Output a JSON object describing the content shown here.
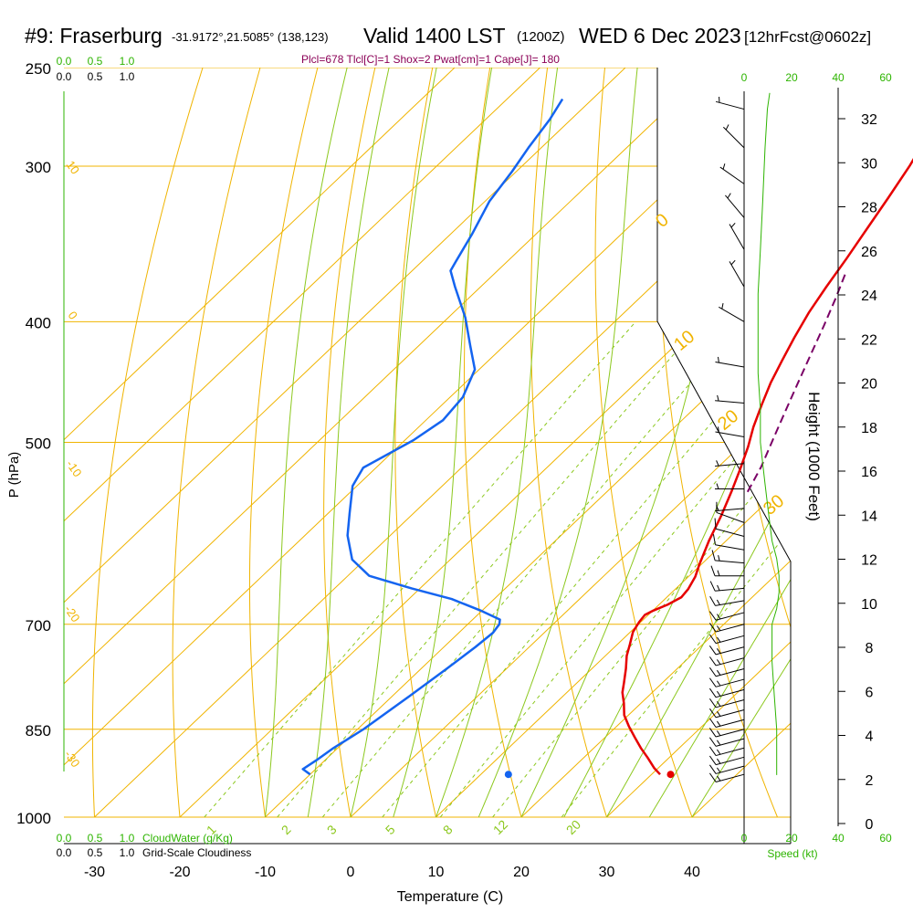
{
  "header": {
    "station": "#9: Fraserburg",
    "coords": "-31.9172°,21.5085° (138,123)",
    "valid": "Valid 1400 LST",
    "utc": "(1200Z)",
    "date": "WED 6 Dec 2023",
    "forecast": "[12hrFcst@0602z]"
  },
  "indices": "Plcl=678 Tlcl[C]=1 Shox=2 Pwat[cm]=1 Cape[J]= 180",
  "chart_data": {
    "type": "line",
    "subtype": "skew-T log-P",
    "xlabel": "Temperature (C)",
    "ylabel": "P (hPa)",
    "right_axis_label": "Height (1000 Feet)",
    "x_ticks": [
      -30,
      -20,
      -10,
      0,
      10,
      20,
      30,
      40
    ],
    "p_ticks": [
      250,
      300,
      400,
      500,
      700,
      850,
      1000
    ],
    "height_ticks": [
      0,
      2,
      4,
      6,
      8,
      10,
      12,
      14,
      16,
      18,
      20,
      22,
      24,
      26,
      28,
      30,
      32
    ],
    "series": [
      {
        "name": "Temperature",
        "color": "#e60000",
        "points": [
          [
            31.0,
            924
          ],
          [
            29.5,
            913
          ],
          [
            27.5,
            896
          ],
          [
            25.5,
            880
          ],
          [
            23.5,
            863
          ],
          [
            21.5,
            846
          ],
          [
            19.5,
            828
          ],
          [
            18.0,
            810
          ],
          [
            16.5,
            794
          ],
          [
            15.5,
            780
          ],
          [
            14.0,
            760
          ],
          [
            12.5,
            742
          ],
          [
            11.5,
            727
          ],
          [
            10.3,
            710
          ],
          [
            9.8,
            697
          ],
          [
            9.6,
            688
          ],
          [
            10.0,
            683
          ],
          [
            11.0,
            675
          ],
          [
            11.7,
            666
          ],
          [
            11.5,
            656
          ],
          [
            10.8,
            641
          ],
          [
            9.8,
            627
          ],
          [
            8.0,
            600
          ],
          [
            6.3,
            572
          ],
          [
            4.6,
            548
          ],
          [
            2.8,
            525
          ],
          [
            1.0,
            504
          ],
          [
            -0.8,
            486
          ],
          [
            -2.6,
            466
          ],
          [
            -4.2,
            448
          ],
          [
            -5.6,
            430
          ],
          [
            -7.0,
            412
          ],
          [
            -8.4,
            393
          ],
          [
            -9.5,
            375
          ],
          [
            -10.6,
            356
          ],
          [
            -11.8,
            338
          ],
          [
            -13.2,
            318
          ],
          [
            -14.6,
            300
          ],
          [
            -16.4,
            282
          ],
          [
            -17.8,
            266
          ],
          [
            -18.8,
            254
          ]
        ]
      },
      {
        "name": "Dew point",
        "color": "#1464f0",
        "points": [
          [
            -10.0,
            924
          ],
          [
            -11.5,
            915
          ],
          [
            -11.0,
            900
          ],
          [
            -10.5,
            880
          ],
          [
            -9.3,
            850
          ],
          [
            -8.0,
            800
          ],
          [
            -7.0,
            760
          ],
          [
            -6.3,
            730
          ],
          [
            -6.0,
            711
          ],
          [
            -6.3,
            700
          ],
          [
            -6.8,
            694
          ],
          [
            -10.0,
            683
          ],
          [
            -15.0,
            668
          ],
          [
            -21.0,
            655
          ],
          [
            -27.5,
            640
          ],
          [
            -31.5,
            621
          ],
          [
            -35.0,
            594
          ],
          [
            -37.5,
            570
          ],
          [
            -40.5,
            542
          ],
          [
            -41.5,
            524
          ],
          [
            -39.0,
            498
          ],
          [
            -38.0,
            480
          ],
          [
            -38.5,
            460
          ],
          [
            -40.5,
            437
          ],
          [
            -44.0,
            418
          ],
          [
            -48.0,
            397
          ],
          [
            -53.0,
            375
          ],
          [
            -55.5,
            364
          ],
          [
            -56.0,
            358
          ],
          [
            -57.5,
            340
          ],
          [
            -59.5,
            320
          ],
          [
            -60.5,
            303
          ],
          [
            -61.5,
            290
          ],
          [
            -62.5,
            275
          ],
          [
            -63.5,
            265
          ]
        ]
      },
      {
        "name": "Parcel",
        "color": "#7a0066",
        "points": [
          [
            6.5,
            548
          ],
          [
            5.0,
            523
          ],
          [
            3.0,
            497
          ],
          [
            1.0,
            472
          ],
          [
            -1.0,
            448
          ],
          [
            -3.0,
            425
          ],
          [
            -5.0,
            403
          ],
          [
            -7.0,
            383
          ],
          [
            -9.0,
            365
          ]
        ]
      }
    ],
    "surface_points": {
      "temperature": 32.3,
      "dew_point": 13.3,
      "pressure": 925
    },
    "isotherms": [
      -80,
      -70,
      -60,
      -50,
      -40,
      -30,
      -20,
      -10,
      0,
      10,
      20,
      30,
      40
    ],
    "isotherm_labels": [
      "10",
      "0",
      "-10",
      "-20",
      "-30"
    ],
    "dry_adiabat_labels": [
      "0",
      "10",
      "20",
      "30"
    ],
    "mixing_ratios": [
      1,
      2,
      3,
      5,
      8,
      12,
      20
    ],
    "wind_speed_ticks": [
      0,
      20,
      40,
      60
    ],
    "wind_speed_label": "Speed (kt)",
    "cloud_water_ticks": [
      "0.0",
      "0.5",
      "1.0"
    ],
    "cloud_water_label": "CloudWater (g/Kg)",
    "cloudiness_label": "Grid-Scale Cloudiness",
    "wind_speed_profile": [
      [
        925,
        14
      ],
      [
        900,
        14
      ],
      [
        850,
        14
      ],
      [
        800,
        13
      ],
      [
        750,
        12
      ],
      [
        700,
        12
      ],
      [
        680,
        14
      ],
      [
        660,
        15
      ],
      [
        640,
        15
      ],
      [
        620,
        14
      ],
      [
        600,
        12
      ],
      [
        580,
        11
      ],
      [
        560,
        10
      ],
      [
        540,
        9
      ],
      [
        520,
        8
      ],
      [
        500,
        7
      ],
      [
        470,
        7
      ],
      [
        440,
        6
      ],
      [
        410,
        6
      ],
      [
        380,
        6
      ],
      [
        350,
        7
      ],
      [
        320,
        8
      ],
      [
        290,
        9
      ],
      [
        270,
        10
      ],
      [
        262,
        11
      ]
    ],
    "wind_barbs": [
      {
        "p": 924,
        "dir": 255,
        "spd": 15
      },
      {
        "p": 910,
        "dir": 255,
        "spd": 15
      },
      {
        "p": 895,
        "dir": 255,
        "spd": 15
      },
      {
        "p": 880,
        "dir": 255,
        "spd": 15
      },
      {
        "p": 865,
        "dir": 255,
        "spd": 15
      },
      {
        "p": 850,
        "dir": 255,
        "spd": 15
      },
      {
        "p": 835,
        "dir": 255,
        "spd": 15
      },
      {
        "p": 820,
        "dir": 255,
        "spd": 15
      },
      {
        "p": 805,
        "dir": 255,
        "spd": 15
      },
      {
        "p": 790,
        "dir": 255,
        "spd": 15
      },
      {
        "p": 775,
        "dir": 255,
        "spd": 15
      },
      {
        "p": 760,
        "dir": 255,
        "spd": 15
      },
      {
        "p": 745,
        "dir": 255,
        "spd": 15
      },
      {
        "p": 730,
        "dir": 255,
        "spd": 15
      },
      {
        "p": 715,
        "dir": 255,
        "spd": 15
      },
      {
        "p": 700,
        "dir": 255,
        "spd": 15
      },
      {
        "p": 685,
        "dir": 255,
        "spd": 15
      },
      {
        "p": 670,
        "dir": 260,
        "spd": 15
      },
      {
        "p": 655,
        "dir": 265,
        "spd": 15
      },
      {
        "p": 640,
        "dir": 270,
        "spd": 15
      },
      {
        "p": 625,
        "dir": 275,
        "spd": 15
      },
      {
        "p": 610,
        "dir": 280,
        "spd": 10
      },
      {
        "p": 595,
        "dir": 285,
        "spd": 10
      },
      {
        "p": 580,
        "dir": 290,
        "spd": 10
      },
      {
        "p": 565,
        "dir": 265,
        "spd": 5
      },
      {
        "p": 545,
        "dir": 270,
        "spd": 5
      },
      {
        "p": 520,
        "dir": 265,
        "spd": 5
      },
      {
        "p": 495,
        "dir": 280,
        "spd": 5
      },
      {
        "p": 465,
        "dir": 275,
        "spd": 5
      },
      {
        "p": 435,
        "dir": 280,
        "spd": 5
      },
      {
        "p": 400,
        "dir": 300,
        "spd": 5
      },
      {
        "p": 375,
        "dir": 330,
        "spd": 5
      },
      {
        "p": 350,
        "dir": 330,
        "spd": 5
      },
      {
        "p": 330,
        "dir": 320,
        "spd": 5
      },
      {
        "p": 310,
        "dir": 305,
        "spd": 5
      },
      {
        "p": 290,
        "dir": 315,
        "spd": 5
      },
      {
        "p": 270,
        "dir": 285,
        "spd": 5
      }
    ]
  }
}
